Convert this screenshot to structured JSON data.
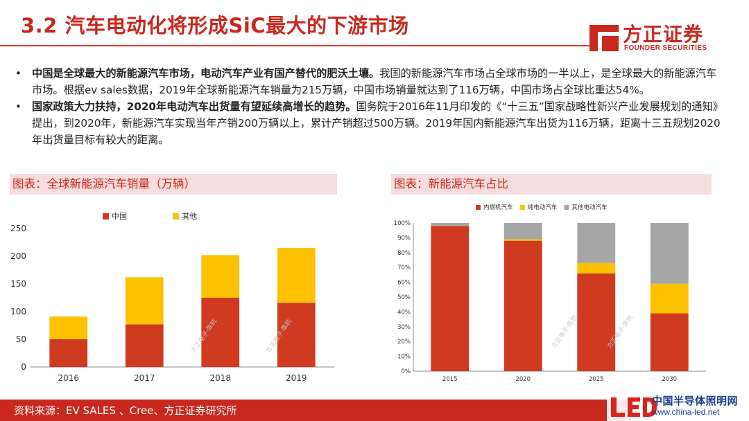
{
  "header": {
    "title": "3.2 汽车电动化将形成SiC最大的下游市场",
    "logo_text": "方正证券",
    "logo_sub": "FOUNDER SECURITIES"
  },
  "bullets": [
    {
      "bold": "中国是全球最大的新能源汽车市场，电动汽车产业有国产替代的肥沃土壤。",
      "text": "我国的新能源汽车市场占全球市场的一半以上，是全球最大的新能源汽车市场。根据ev sales数据，2019年全球新能源汽车销量为215万辆，中国市场销量就达到了116万辆，中国市场占全球比重达54%。"
    },
    {
      "bold": "国家政策大力扶持，2020年电动汽车出货量有望延续高增长的趋势。",
      "text": "国务院于2016年11月印发的《“十三五”国家战略性新兴产业发展规划的通知》提出，到2020年，新能源汽车实现当年产销200万辆以上，累计产销超过500万辆。2019年国内新能源汽车出货为116万辆，距离十三五规划2020年出货量目标有较大的距离。"
    }
  ],
  "chart_left_header": "图表：全球新能源汽车销量（万辆）",
  "chart_right_header": "图表：新能源汽车占比",
  "watermark": "方正电子·陈杭",
  "chart_data": [
    {
      "type": "bar",
      "stacked": true,
      "categories": [
        "2016",
        "2017",
        "2018",
        "2019"
      ],
      "series": [
        {
          "name": "中国",
          "values": [
            50,
            77,
            125,
            116
          ],
          "color": "#d03a1f"
        },
        {
          "name": "其他",
          "values": [
            41,
            85,
            77,
            99
          ],
          "color": "#fdc100"
        }
      ],
      "ylim": [
        0,
        250
      ],
      "yticks": [
        "0",
        "50",
        "100",
        "150",
        "200",
        "250"
      ],
      "legend": "top"
    },
    {
      "type": "bar",
      "stacked": true,
      "categories": [
        "2015",
        "2020",
        "2025",
        "2030"
      ],
      "series": [
        {
          "name": "内燃机汽车",
          "values": [
            98,
            88,
            66,
            39
          ],
          "color": "#d03a1f"
        },
        {
          "name": "纯电动汽车",
          "values": [
            0,
            1,
            7,
            20
          ],
          "color": "#fdc100"
        },
        {
          "name": "其他电动汽车",
          "values": [
            2,
            11,
            27,
            41
          ],
          "color": "#a6a6a6"
        }
      ],
      "ylim": [
        0,
        100
      ],
      "yticks": [
        "0%",
        "10%",
        "20%",
        "30%",
        "40%",
        "50%",
        "60%",
        "70%",
        "80%",
        "90%",
        "100%"
      ],
      "legend": "top"
    }
  ],
  "footer": {
    "source": "资料来源：EV SALES 、Cree、方正证券研究所"
  },
  "corner_logo": {
    "name": "中国半导体照明网",
    "url": "www.china-led.net"
  }
}
